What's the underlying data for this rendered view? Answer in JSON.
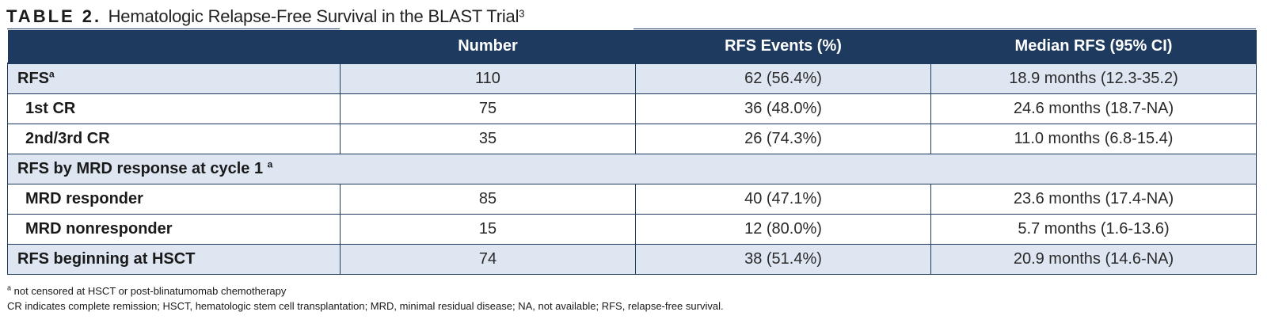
{
  "header": {
    "table_label": "TABLE 2.",
    "title": "Hematologic Relapse-Free Survival in the BLAST Trial",
    "title_ref": "3"
  },
  "table": {
    "columns": [
      "",
      "Number",
      "RFS Events (%)",
      "Median RFS (95% CI)"
    ],
    "rows": [
      {
        "label": "RFS",
        "sup": "a",
        "number": "110",
        "events": "62 (56.4%)",
        "median": "18.9 months (12.3-35.2)"
      },
      {
        "label": "1st CR",
        "sup": "",
        "number": "75",
        "events": "36 (48.0%)",
        "median": "24.6 months (18.7-NA)"
      },
      {
        "label": "2nd/3rd CR",
        "sup": "",
        "number": "35",
        "events": "26 (74.3%)",
        "median": "11.0 months (6.8-15.4)"
      },
      {
        "label": "RFS by MRD response at cycle 1",
        "sup": "a"
      },
      {
        "label": "MRD responder",
        "sup": "",
        "number": "85",
        "events": "40 (47.1%)",
        "median": "23.6 months (17.4-NA)"
      },
      {
        "label": "MRD nonresponder",
        "sup": "",
        "number": "15",
        "events": "12 (80.0%)",
        "median": "5.7 months (1.6-13.6)"
      },
      {
        "label": "RFS beginning at HSCT",
        "sup": "",
        "number": "74",
        "events": "38 (51.4%)",
        "median": "20.9 months (14.6-NA)"
      }
    ]
  },
  "footnotes": {
    "a_marker": "a",
    "a_text": "not censored at HSCT or post-blinatumomab chemotherapy",
    "abbreviations": "CR indicates complete remission; HSCT, hematologic stem cell transplantation; MRD, minimal residual disease; NA, not available; RFS, relapse-free survival."
  },
  "colors": {
    "header_bg": "#1f3a5f",
    "row_shade": "#dde6f1"
  }
}
